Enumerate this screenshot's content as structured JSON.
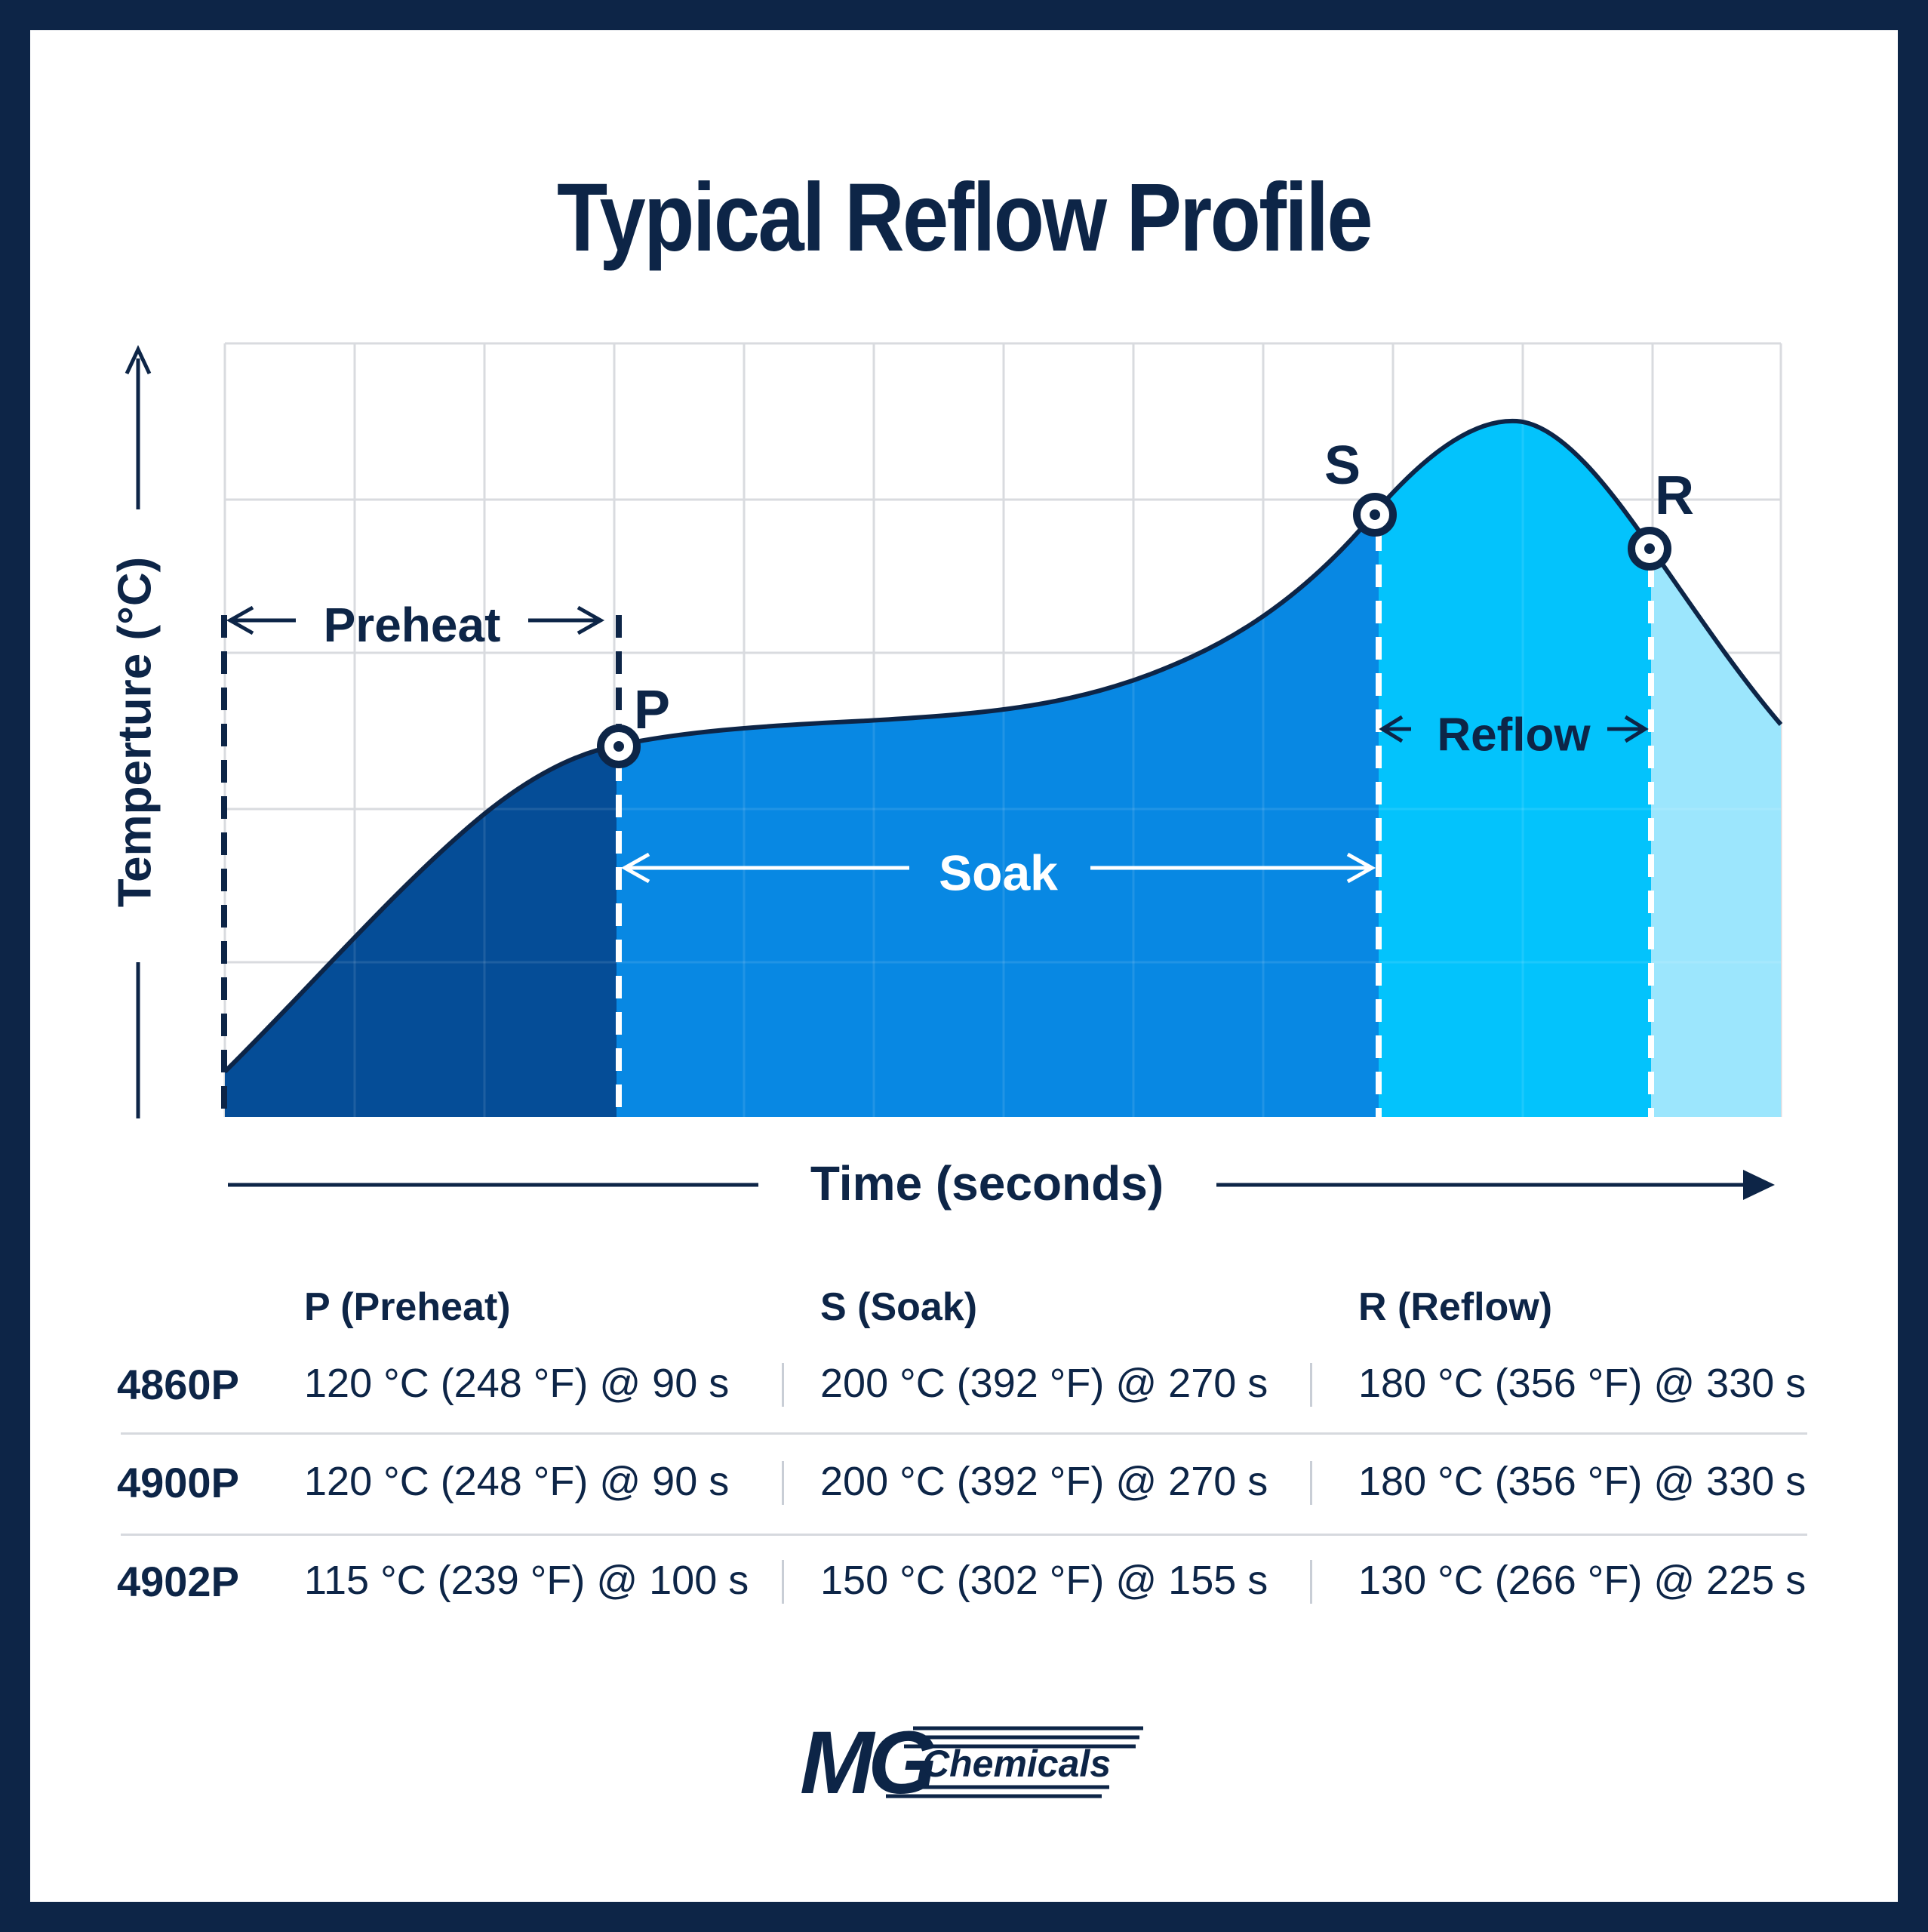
{
  "title": "Typical Reflow Profile",
  "axes": {
    "y_label": "Temperture (°C)",
    "x_label": "Time (seconds)"
  },
  "points": {
    "p": "P",
    "s": "S",
    "r": "R"
  },
  "phases": {
    "preheat": "Preheat",
    "soak": "Soak",
    "reflow": "Reflow"
  },
  "colors": {
    "navy": "#0d2547",
    "preheat_fill": "#054d97",
    "soak_fill": "#0888e3",
    "reflow_fill": "#03c3fc",
    "cooling_fill": "#9ce6fd"
  },
  "table": {
    "headers": [
      "P (Preheat)",
      "S (Soak)",
      "R (Reflow)"
    ],
    "rows": [
      {
        "product": "4860P",
        "preheat": "120 °C (248 °F) @ 90 s",
        "soak": "200 °C (392 °F) @ 270 s",
        "reflow": "180 °C (356 °F) @ 330 s"
      },
      {
        "product": "4900P",
        "preheat": "120 °C (248 °F) @ 90 s",
        "soak": "200 °C (392 °F) @ 270 s",
        "reflow": "180 °C (356 °F) @ 330 s"
      },
      {
        "product": "4902P",
        "preheat": "115 °C (239 °F) @ 100 s",
        "soak": "150 °C (302 °F) @ 155 s",
        "reflow": "130 °C (266 °F) @ 225 s"
      }
    ]
  },
  "logo": {
    "mark": "MG",
    "name": "Chemicals"
  }
}
